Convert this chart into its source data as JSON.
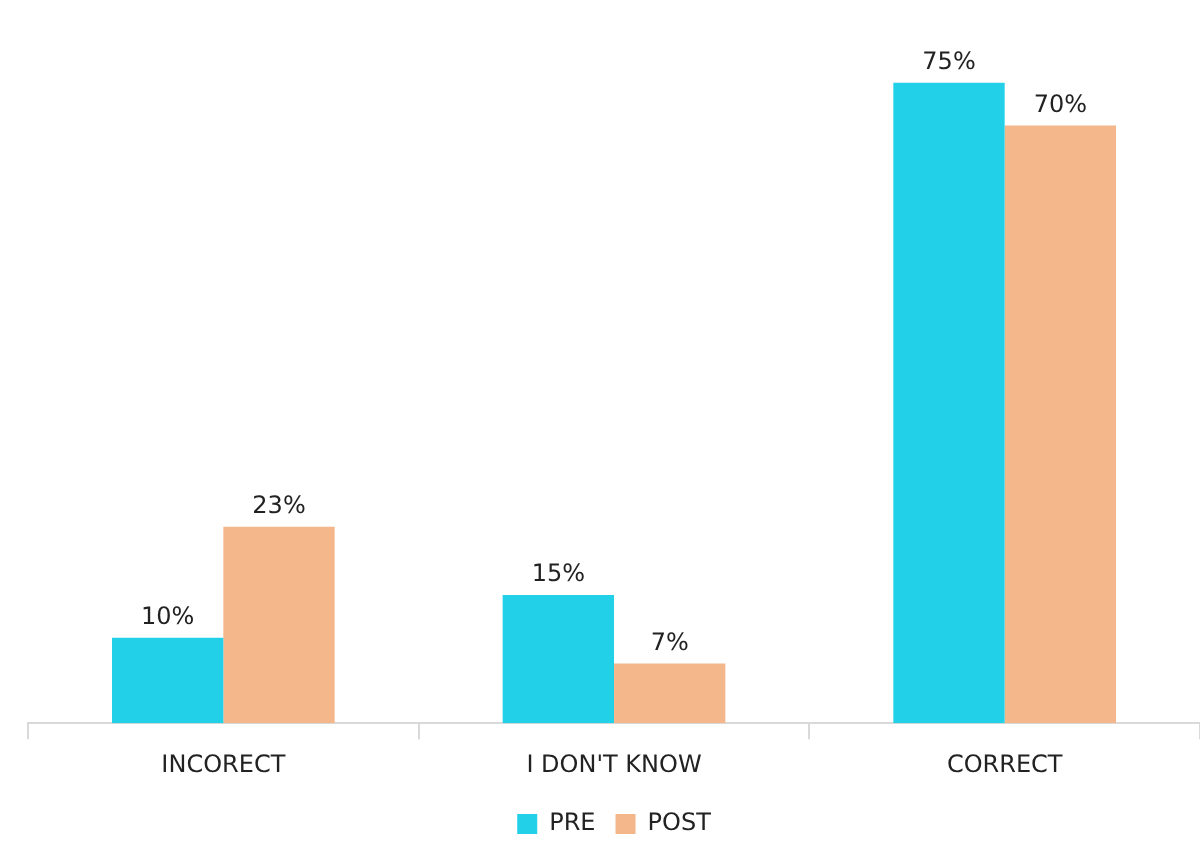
{
  "chart_data": {
    "type": "bar",
    "categories": [
      "INCORECT",
      "I DON'T KNOW",
      "CORRECT"
    ],
    "series": [
      {
        "name": "PRE",
        "color": "#22d0e8",
        "values": [
          10,
          15,
          75
        ],
        "value_labels": [
          "10%",
          "15%",
          "75%"
        ]
      },
      {
        "name": "POST",
        "color": "#f4b68b",
        "values": [
          23,
          7,
          70
        ],
        "value_labels": [
          "23%",
          "7%",
          "70%"
        ]
      }
    ],
    "legend": "bottom",
    "grid": false
  }
}
